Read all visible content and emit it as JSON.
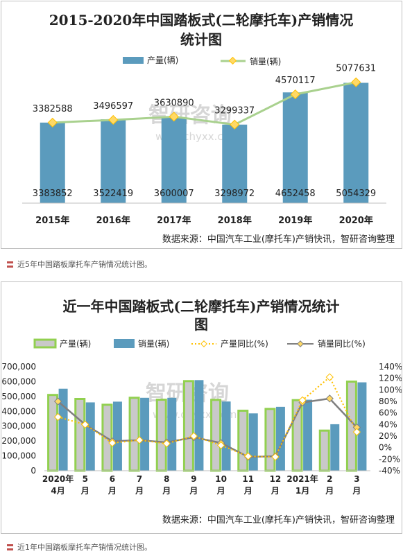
{
  "chart_data": [
    {
      "type": "bar",
      "title_lines": [
        "2015-2020年中国踏板式(二轮摩托车)产销情况",
        "统计图"
      ],
      "categories": [
        "2015年",
        "2016年",
        "2017年",
        "2018年",
        "2019年",
        "2020年"
      ],
      "series": [
        {
          "name": "产量(辆)",
          "type": "bar",
          "color": "#5b9bbd",
          "values": [
            3383852,
            3522419,
            3600007,
            3298972,
            4652458,
            5054329
          ]
        },
        {
          "name": "销量(辆)",
          "type": "line",
          "color": "#a9d18e",
          "marker_color": "#ffd966",
          "values": [
            3382588,
            3496597,
            3630890,
            3299337,
            4570117,
            5077631
          ]
        }
      ],
      "ylim": [
        0,
        6000000
      ],
      "grid": false,
      "legend": "top",
      "source": "数据来源：中国汽车工业(摩托车)产销快讯，智研咨询整理"
    },
    {
      "type": "bar",
      "title_lines": [
        "近一年中国踏板式(二轮摩托车)产销情况统计",
        "图"
      ],
      "categories": [
        [
          "2020年",
          "4月"
        ],
        [
          "5",
          "月"
        ],
        [
          "6",
          "月"
        ],
        [
          "7",
          "月"
        ],
        [
          "8",
          "月"
        ],
        [
          "9",
          "月"
        ],
        [
          "10",
          "月"
        ],
        [
          "11",
          "月"
        ],
        [
          "12",
          "月"
        ],
        [
          "2021年",
          "1月"
        ],
        [
          "2",
          "月"
        ],
        [
          "3",
          "月"
        ]
      ],
      "series": [
        {
          "name": "产量(辆)",
          "type": "bar",
          "axis": "left",
          "color": "#c9c9c9",
          "edge_color": "#92d050",
          "values": [
            510000,
            483000,
            444000,
            491000,
            478000,
            603000,
            477000,
            404000,
            416000,
            475000,
            270000,
            600000
          ]
        },
        {
          "name": "销量(辆)",
          "type": "bar",
          "axis": "left",
          "color": "#5b9bbd",
          "values": [
            552000,
            460000,
            465000,
            491000,
            491000,
            610000,
            466000,
            386000,
            430000,
            478000,
            313000,
            595000
          ]
        },
        {
          "name": "产量同比(%)",
          "type": "line",
          "axis": "right",
          "color": "#ffc000",
          "dashed": true,
          "values": [
            53,
            40,
            8,
            13,
            7,
            20,
            4,
            -15,
            -16,
            82,
            122,
            27
          ]
        },
        {
          "name": "销量同比(%)",
          "type": "line",
          "axis": "right",
          "color": "#7f7f7f",
          "values": [
            80,
            40,
            11,
            13,
            9,
            18,
            8,
            -16,
            -15,
            78,
            85,
            35
          ]
        }
      ],
      "ylim": [
        0,
        700000
      ],
      "y_ticks": [
        "0",
        "100,000",
        "200,000",
        "300,000",
        "400,000",
        "500,000",
        "600,000",
        "700,000"
      ],
      "y2lim": [
        -40,
        140
      ],
      "y2_ticks": [
        "-40%",
        "-20%",
        "0%",
        "20%",
        "40%",
        "60%",
        "80%",
        "100%",
        "120%",
        "140%"
      ],
      "grid": false,
      "legend": "top",
      "source": "数据来源：中国汽车工业(摩托车)产销快讯，智研咨询整理"
    }
  ],
  "watermark": {
    "brand": "智研咨询",
    "url": "www.chyxx.com"
  },
  "captions": [
    "近5年中国踏板摩托车产销情况统计图。",
    "近1年中国踏板摩托车产销情况统计图。"
  ]
}
